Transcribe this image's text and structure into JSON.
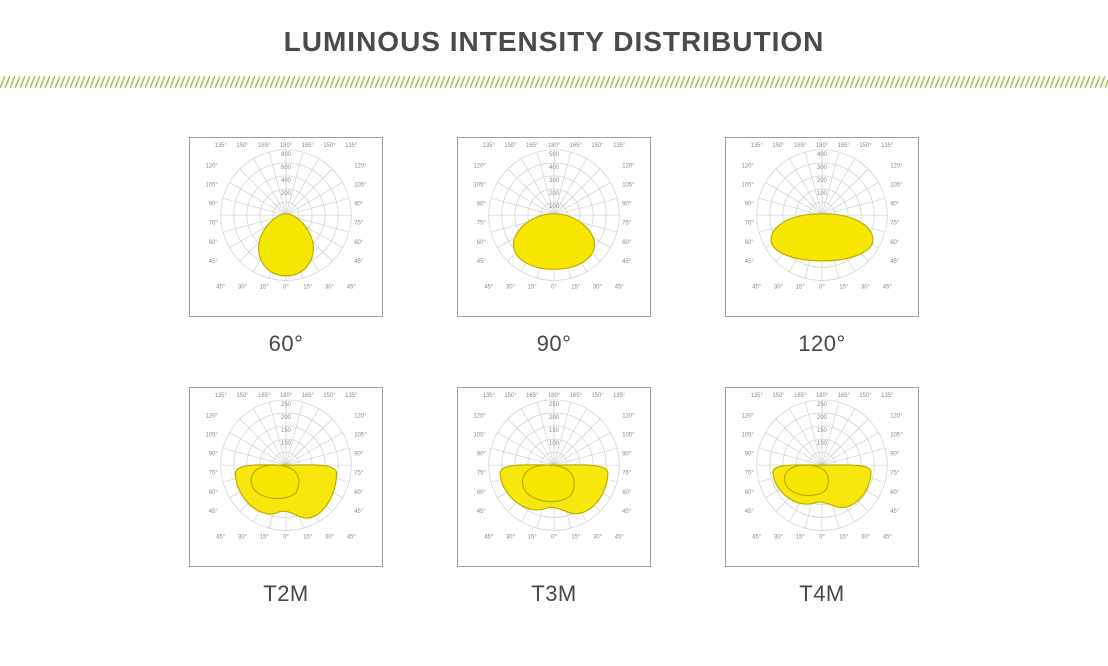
{
  "title": "LUMINOUS INTENSITY DISTRIBUTION",
  "divider": {
    "color": "#9fc54e",
    "angle_deg": 60,
    "spacing": 5,
    "thickness": 1.5
  },
  "polar_grid": {
    "ring_stroke": "#c8c8c8",
    "ring_stroke_width": 0.6,
    "spoke_stroke": "#c8c8c8",
    "spoke_stroke_width": 0.6,
    "angle_labels_top_deg": [
      135,
      150,
      165,
      180,
      165,
      150,
      135
    ],
    "angle_labels_side_deg": [
      120,
      105,
      90,
      75,
      60,
      45
    ],
    "angle_labels_bottom_deg": [
      45,
      30,
      15,
      0,
      15,
      30,
      45
    ],
    "label_color": "#8a8a8a",
    "label_fontsize": 6
  },
  "lobe_fill": "#f7e600",
  "lobe_stroke": "#b9af00",
  "lobe_stroke_width": 1.2,
  "cells": [
    {
      "caption": "60°",
      "ring_ticks": [
        "800",
        "600",
        "400",
        "200"
      ],
      "shape": "beam",
      "beam": {
        "width_ratio": 0.42,
        "height_ratio": 0.95,
        "top_taper": 0.55
      }
    },
    {
      "caption": "90°",
      "ring_ticks": [
        "500",
        "400",
        "300",
        "200",
        "100"
      ],
      "shape": "beam",
      "beam": {
        "width_ratio": 0.62,
        "height_ratio": 0.85,
        "top_taper": 0.45
      }
    },
    {
      "caption": "120°",
      "ring_ticks": [
        "400",
        "300",
        "200",
        "100"
      ],
      "shape": "beam",
      "beam": {
        "width_ratio": 0.78,
        "height_ratio": 0.72,
        "top_taper": 0.3
      }
    },
    {
      "caption": "T2M",
      "ring_ticks": [
        "250",
        "200",
        "150",
        "100"
      ],
      "shape": "asym",
      "asym": {
        "main_spread": 1.55,
        "main_depth": 0.85,
        "side_lobe_offset": -0.18,
        "side_spread": 0.85,
        "side_depth": 0.55
      }
    },
    {
      "caption": "T3M",
      "ring_ticks": [
        "250",
        "200",
        "150",
        "100"
      ],
      "shape": "asym",
      "asym": {
        "main_spread": 1.65,
        "main_depth": 0.78,
        "side_lobe_offset": -0.1,
        "side_spread": 0.92,
        "side_depth": 0.6
      }
    },
    {
      "caption": "T4M",
      "ring_ticks": [
        "250",
        "200",
        "150",
        "100"
      ],
      "shape": "asym",
      "asym": {
        "main_spread": 1.5,
        "main_depth": 0.68,
        "side_lobe_offset": -0.25,
        "side_spread": 0.78,
        "side_depth": 0.5
      }
    }
  ]
}
